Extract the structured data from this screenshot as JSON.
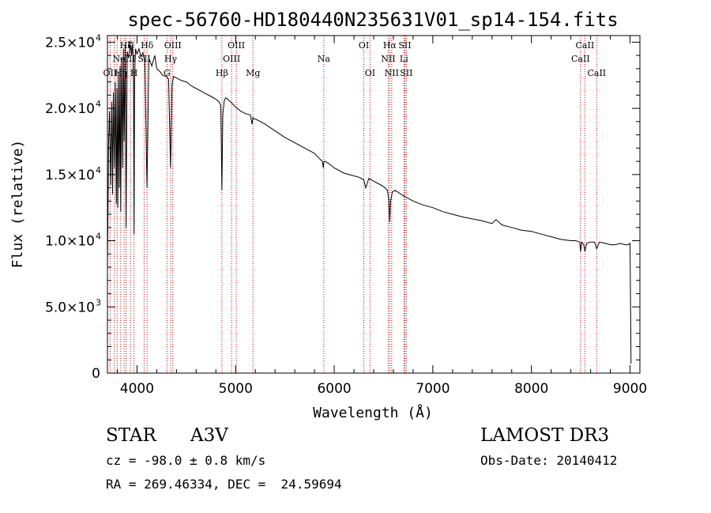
{
  "chart_data": {
    "type": "line",
    "title": "spec-56760-HD180440N235631V01_sp14-154.fits",
    "xlabel": "Wavelength (Å)",
    "ylabel": "Flux (relative)",
    "xlim": [
      3700,
      9100
    ],
    "ylim": [
      0,
      25500
    ],
    "xticks": [
      4000,
      5000,
      6000,
      7000,
      8000,
      9000
    ],
    "xtick_labels": [
      "4000",
      "5000",
      "6000",
      "7000",
      "8000",
      "9000"
    ],
    "yticks": [
      {
        "value": 0,
        "mantissa": "0",
        "exponent": ""
      },
      {
        "value": 5000,
        "mantissa": "5.0×10",
        "exponent": "3"
      },
      {
        "value": 10000,
        "mantissa": "1.0×10",
        "exponent": "4"
      },
      {
        "value": 15000,
        "mantissa": "1.5×10",
        "exponent": "4"
      },
      {
        "value": 20000,
        "mantissa": "2.0×10",
        "exponent": "4"
      },
      {
        "value": 25000,
        "mantissa": "2.5×10",
        "exponent": "4"
      }
    ],
    "spectrum": {
      "x": [
        3700,
        3712,
        3722,
        3733,
        3744,
        3752,
        3760,
        3770,
        3780,
        3790,
        3797,
        3805,
        3812,
        3820,
        3828,
        3835,
        3845,
        3855,
        3862,
        3870,
        3880,
        3889,
        3900,
        3915,
        3930,
        3945,
        3955,
        3964,
        3970,
        3976,
        3985,
        4000,
        4020,
        4040,
        4060,
        4080,
        4101,
        4120,
        4150,
        4180,
        4200,
        4230,
        4260,
        4300,
        4320,
        4340,
        4355,
        4370,
        4400,
        4450,
        4500,
        4550,
        4600,
        4650,
        4700,
        4750,
        4800,
        4830,
        4850,
        4861,
        4870,
        4885,
        4900,
        4920,
        4960,
        5000,
        5050,
        5100,
        5150,
        5167,
        5175,
        5183,
        5200,
        5250,
        5300,
        5400,
        5500,
        5600,
        5700,
        5800,
        5850,
        5880,
        5890,
        5896,
        5910,
        5950,
        6000,
        6100,
        6200,
        6250,
        6300,
        6320,
        6350,
        6400,
        6450,
        6500,
        6540,
        6555,
        6563,
        6572,
        6590,
        6620,
        6700,
        6800,
        6900,
        7000,
        7100,
        7200,
        7300,
        7400,
        7500,
        7600,
        7640,
        7700,
        7800,
        7900,
        8000,
        8100,
        8200,
        8300,
        8400,
        8450,
        8490,
        8498,
        8510,
        8530,
        8542,
        8560,
        8600,
        8640,
        8662,
        8690,
        8750,
        8800,
        8850,
        8900,
        8950,
        8980,
        9000,
        9010
      ],
      "y": [
        7800,
        17500,
        19800,
        14200,
        20500,
        13500,
        21200,
        15500,
        22000,
        12800,
        21500,
        12500,
        22800,
        14000,
        23200,
        12200,
        23800,
        15500,
        24500,
        17500,
        24800,
        11000,
        24300,
        23800,
        24800,
        24000,
        24900,
        22000,
        10500,
        22500,
        24500,
        24100,
        24500,
        23900,
        24200,
        23500,
        14000,
        23800,
        23200,
        24000,
        23000,
        22800,
        22500,
        22400,
        22200,
        15500,
        21800,
        22400,
        22300,
        22100,
        22000,
        21700,
        21500,
        21300,
        21100,
        20900,
        20700,
        20500,
        20200,
        13800,
        19500,
        20600,
        20800,
        20700,
        20400,
        20100,
        19800,
        19600,
        19500,
        18800,
        19300,
        19200,
        19200,
        19000,
        18800,
        18300,
        17800,
        17400,
        17000,
        16600,
        16200,
        16000,
        15500,
        16000,
        16000,
        15800,
        15500,
        15100,
        14900,
        14800,
        14600,
        14000,
        14700,
        14500,
        14300,
        14100,
        13800,
        13000,
        11400,
        13000,
        13700,
        13800,
        13400,
        13000,
        12700,
        12500,
        12200,
        12000,
        11800,
        11650,
        11500,
        11300,
        11600,
        11200,
        11000,
        10800,
        10700,
        10500,
        10300,
        10100,
        10000,
        10000,
        9900,
        9200,
        9900,
        9700,
        9200,
        9800,
        9900,
        9900,
        9400,
        9900,
        9800,
        9700,
        9700,
        9800,
        9700,
        9700,
        9800,
        700
      ]
    },
    "lines": [
      {
        "wl": 3727,
        "label": "OII",
        "row": 2
      },
      {
        "wl": 3770,
        "label": "",
        "row": 0
      },
      {
        "wl": 3798,
        "label": "",
        "row": 0
      },
      {
        "wl": 3835,
        "label": "Hη",
        "row": 2
      },
      {
        "wl": 3869,
        "label": "NeIII",
        "row": 1
      },
      {
        "wl": 3889,
        "label": "Hζ",
        "row": 0
      },
      {
        "wl": 3934,
        "label": "K",
        "row": 0
      },
      {
        "wl": 3969,
        "label": "H",
        "row": 2
      },
      {
        "wl": 4072,
        "label": "SII",
        "row": 1
      },
      {
        "wl": 4102,
        "label": "Hδ",
        "row": 0
      },
      {
        "wl": 4304,
        "label": "G",
        "row": 2
      },
      {
        "wl": 4341,
        "label": "Hγ",
        "row": 1
      },
      {
        "wl": 4363,
        "label": "OIII",
        "row": 0
      },
      {
        "wl": 4861,
        "label": "Hβ",
        "row": 2
      },
      {
        "wl": 4959,
        "label": "OIII",
        "row": 1
      },
      {
        "wl": 5007,
        "label": "OIII",
        "row": 0
      },
      {
        "wl": 5176,
        "label": "Mg",
        "row": 2
      },
      {
        "wl": 5894,
        "label": "Na",
        "row": 1
      },
      {
        "wl": 6300,
        "label": "OI",
        "row": 0
      },
      {
        "wl": 6363,
        "label": "OI",
        "row": 2
      },
      {
        "wl": 6548,
        "label": "NII",
        "row": 1
      },
      {
        "wl": 6563,
        "label": "Hα",
        "row": 0
      },
      {
        "wl": 6583,
        "label": "NII",
        "row": 2
      },
      {
        "wl": 6707,
        "label": "Li",
        "row": 1
      },
      {
        "wl": 6716,
        "label": "SII",
        "row": 0
      },
      {
        "wl": 6731,
        "label": "SII",
        "row": 2
      },
      {
        "wl": 8498,
        "label": "CaII",
        "row": 1
      },
      {
        "wl": 8542,
        "label": "CaII",
        "row": 0
      },
      {
        "wl": 8662,
        "label": "CaII",
        "row": 2
      }
    ]
  },
  "info": {
    "object_class": "STAR",
    "subclass": "A3V",
    "survey": "LAMOST DR3",
    "redshift": "cz = -98.0 ± 0.8 km/s",
    "obs_date": "Obs-Date: 20140412",
    "coordinates": "RA = 269.46334, DEC =  24.59694"
  }
}
